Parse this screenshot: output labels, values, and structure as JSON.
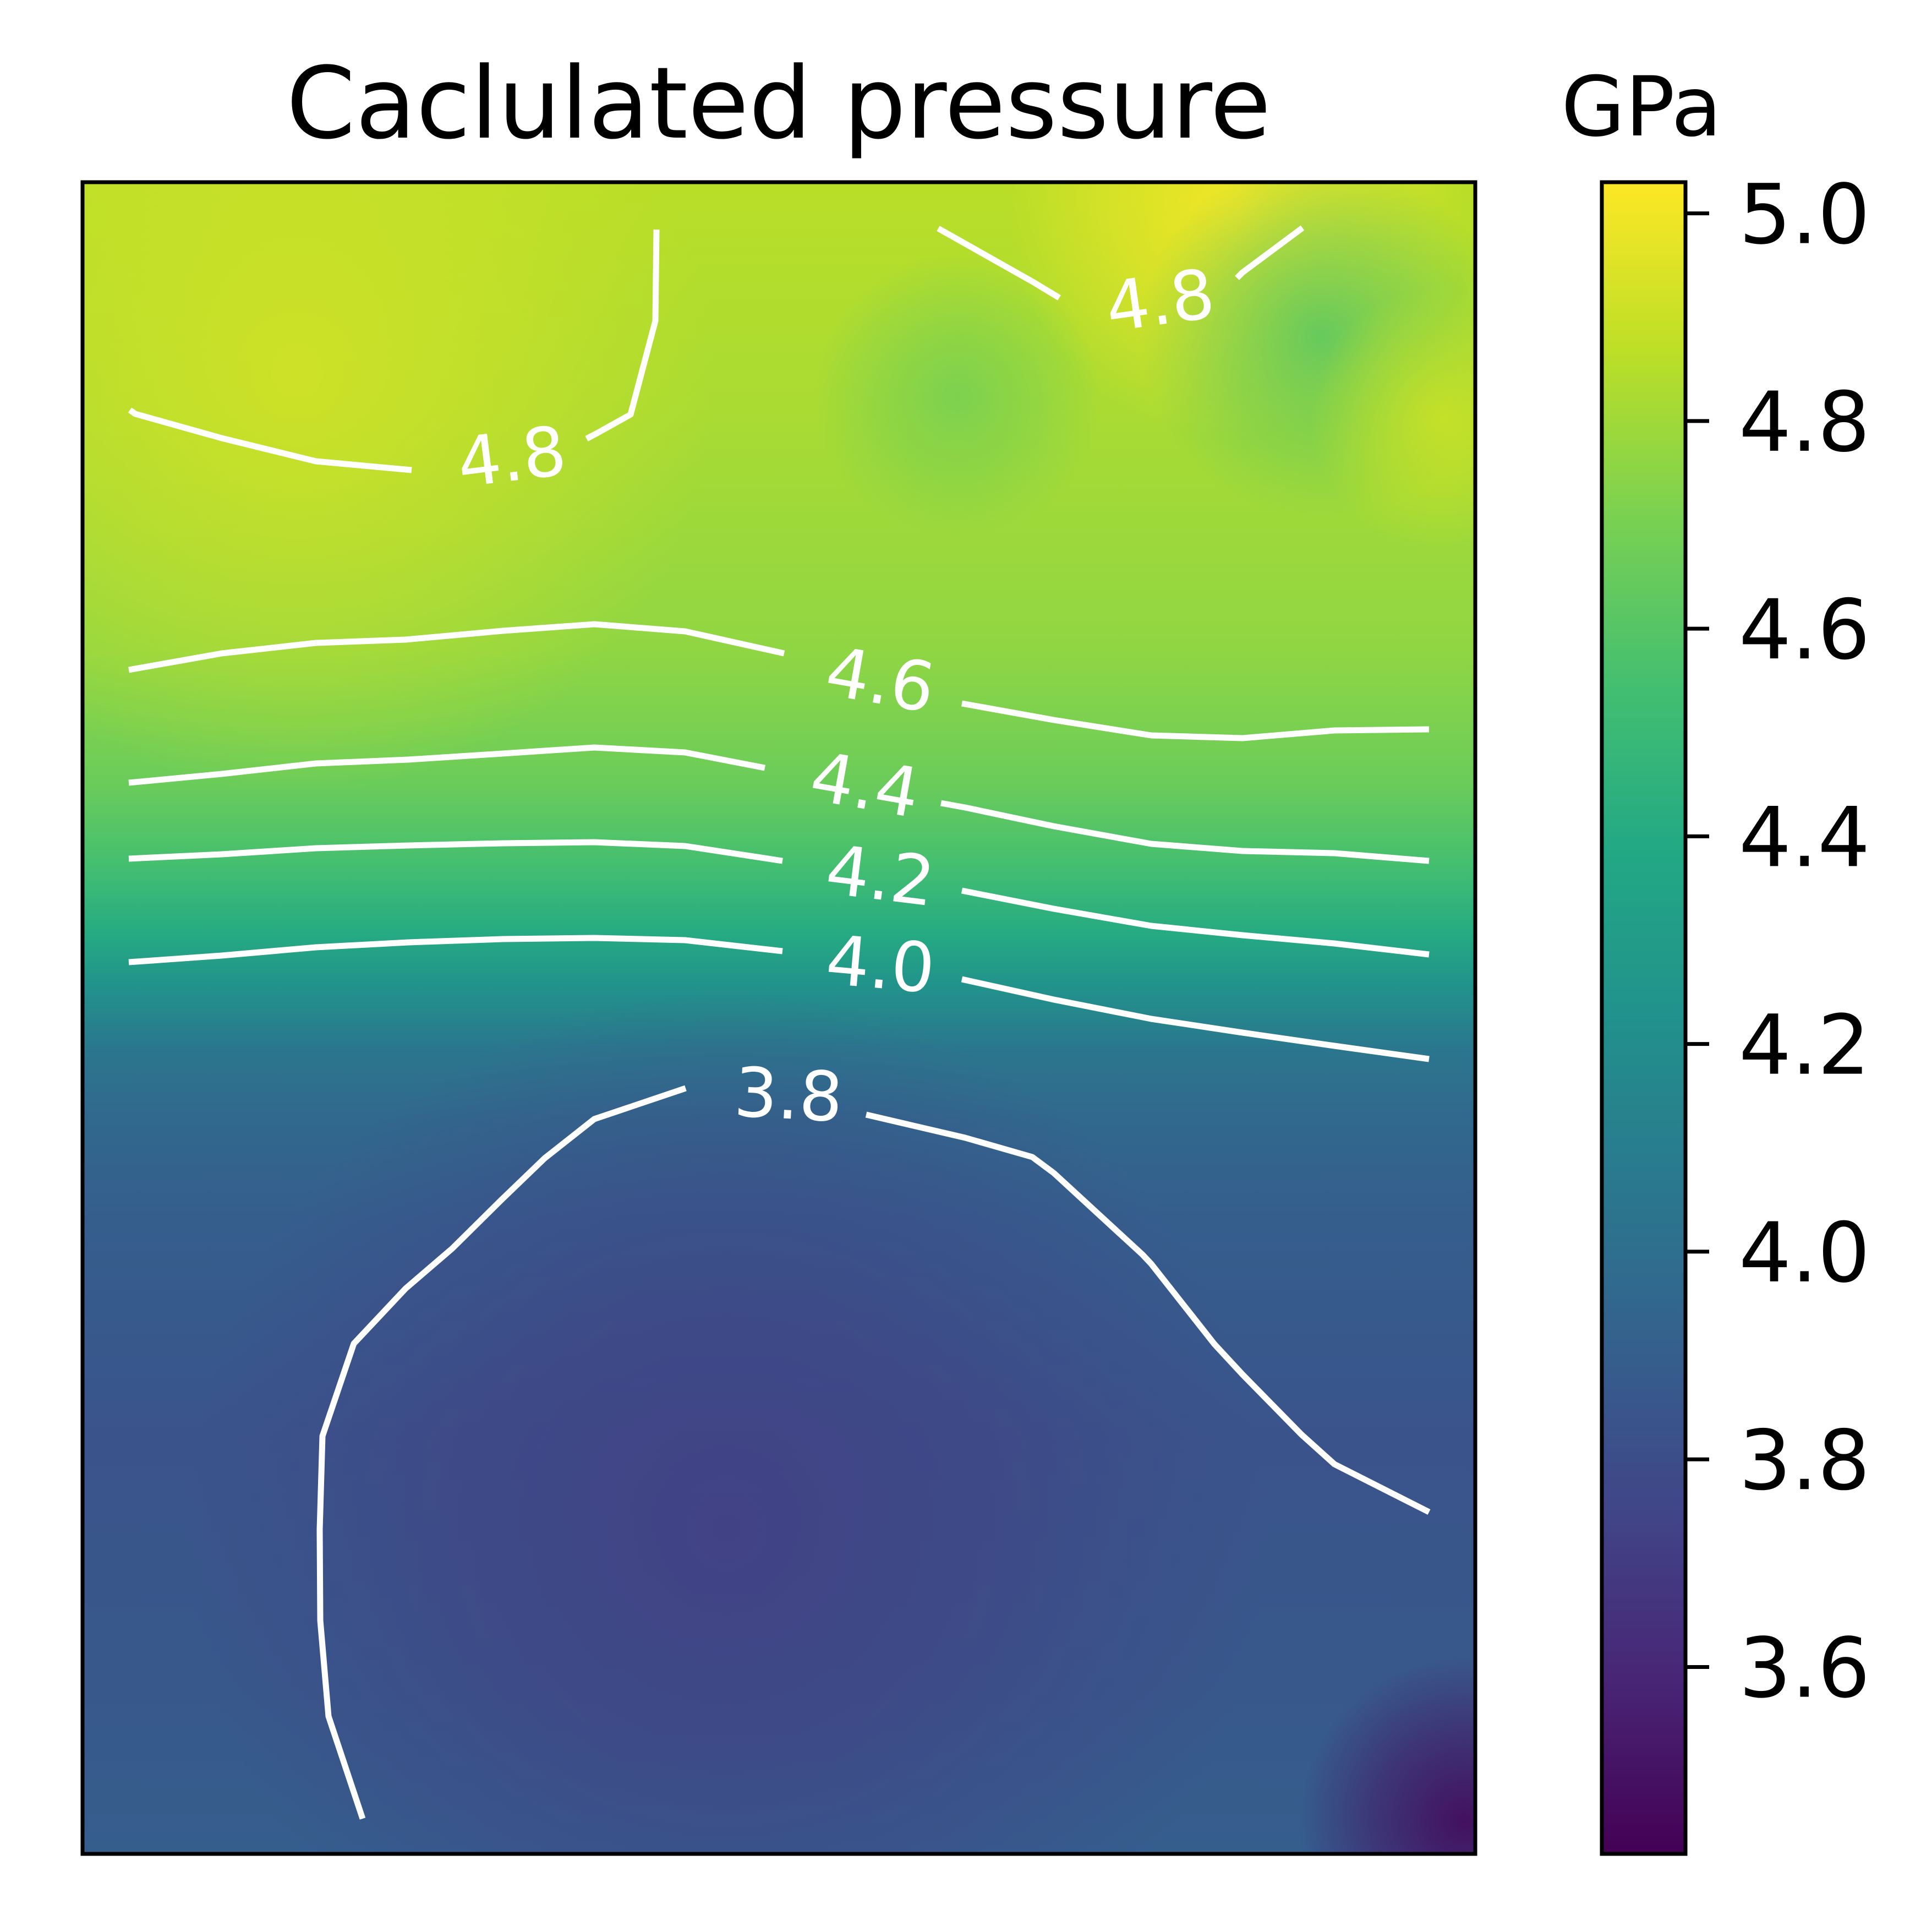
{
  "chart_data": {
    "type": "heatmap",
    "title": "Caclulated pressure",
    "colormap": "viridis",
    "xticks_visible": false,
    "yticks_visible": false,
    "colorbar": {
      "label": "GPa",
      "range": [
        3.42,
        5.03
      ],
      "ticks": [
        3.6,
        3.8,
        4.0,
        4.2,
        4.4,
        4.6,
        4.8,
        5.0
      ],
      "tick_labels": [
        "3.6",
        "3.8",
        "4.0",
        "4.2",
        "4.4",
        "4.6",
        "4.8",
        "5.0"
      ]
    },
    "contour_color": "#ffffff",
    "contours": [
      {
        "level": 4.8,
        "label": "4.8"
      },
      {
        "level": 4.8,
        "label": "4.8"
      },
      {
        "level": 4.6,
        "label": "4.6"
      },
      {
        "level": 4.4,
        "label": "4.4"
      },
      {
        "level": 4.2,
        "label": "4.2"
      },
      {
        "level": 4.0,
        "label": "4.0"
      },
      {
        "level": 3.8,
        "label": "3.8"
      }
    ],
    "field_features": [
      {
        "position": "top-center-right",
        "value": 5.02,
        "kind": "maximum"
      },
      {
        "position": "top-left",
        "value": 4.92,
        "kind": "high"
      },
      {
        "position": "top-right",
        "value": 4.62,
        "kind": "local minimum"
      },
      {
        "position": "bottom-center",
        "value": 3.72,
        "kind": "low"
      },
      {
        "position": "bottom-right",
        "value": 3.45,
        "kind": "minimum"
      }
    ]
  }
}
